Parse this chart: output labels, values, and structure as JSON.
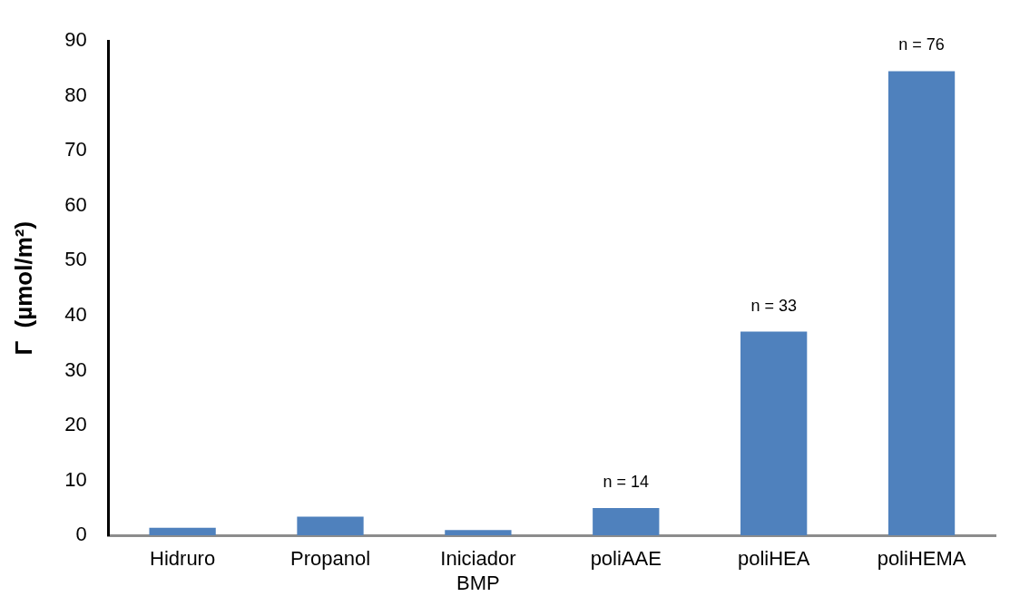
{
  "chart_data": {
    "type": "bar",
    "ylabel": "Γ  (µmol/m²)",
    "categories": [
      "Hidruro",
      "Propanol",
      "Iniciador\nBMP",
      "poliAAE",
      "poliHEA",
      "poliHEMA"
    ],
    "values": [
      1.4,
      3.4,
      1.0,
      5.0,
      37.1,
      84.5
    ],
    "color": "#4f81bd",
    "ylim": [
      0,
      90
    ],
    "yticks": [
      0,
      10,
      20,
      30,
      40,
      50,
      60,
      70,
      80,
      90
    ],
    "grid": false,
    "legend": false,
    "annotations": [
      {
        "text": "n = 14",
        "x": "poliAAE",
        "y": 5.0
      },
      {
        "text": "n = 33",
        "x": "poliHEA",
        "y": 37.1
      },
      {
        "text": "n = 76",
        "x": "poliHEMA",
        "y": 84.5
      }
    ]
  }
}
